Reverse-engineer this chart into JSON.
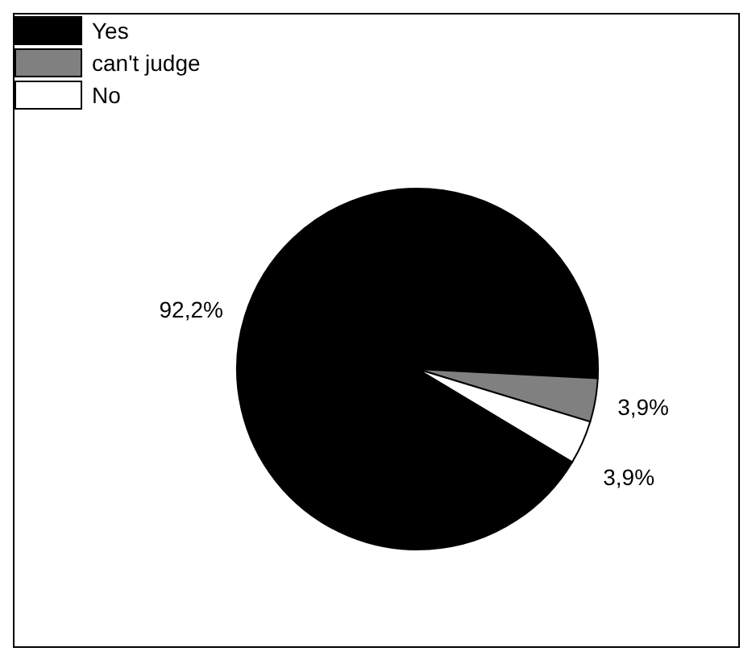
{
  "chart_data": {
    "type": "pie",
    "categories": [
      "Yes",
      "can't judge",
      "No"
    ],
    "values": [
      92.2,
      3.9,
      3.9
    ],
    "colors": [
      "#000000",
      "#808080",
      "#ffffff"
    ],
    "value_labels": [
      "92,2%",
      "3,9%",
      "3,9%"
    ],
    "legend": "top left"
  }
}
